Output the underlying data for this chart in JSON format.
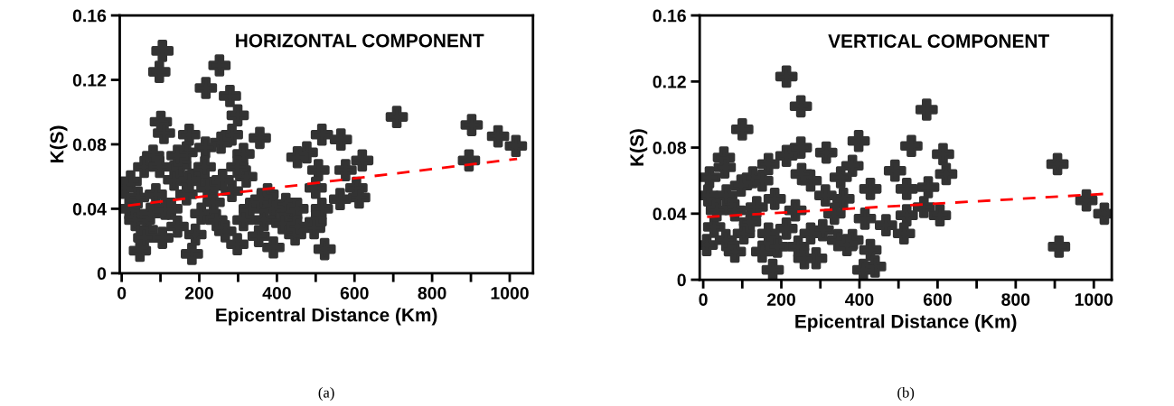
{
  "chart_data": [
    {
      "type": "scatter",
      "title": "HORIZONTAL COMPONENT",
      "xlabel": "Epicentral Distance (Km)",
      "ylabel": "K(S)",
      "annotations": [
        "(a)"
      ],
      "marker": "cross",
      "grid": false,
      "xlim": [
        -5,
        1060
      ],
      "ylim": [
        0,
        0.16
      ],
      "xticks": [
        0,
        {
          "value": 100,
          "label": null
        },
        200,
        {
          "value": 300,
          "label": null
        },
        400,
        {
          "value": 500,
          "label": null
        },
        600,
        {
          "value": 700,
          "label": null
        },
        800,
        {
          "value": 900,
          "label": null
        },
        1000
      ],
      "yticks": [
        0,
        0.04,
        0.08,
        0.12,
        0.16
      ],
      "series": [
        {
          "color": "#333333",
          "x": [
            105,
            97,
            252,
            217,
            279,
            299,
            101,
            109,
            709,
            902,
            970,
            1016,
            895,
            356,
            516,
            565,
            477,
            453,
            620,
            577,
            507,
            605,
            612,
            563,
            500,
            516,
            500,
            496,
            523,
            447,
            391,
            353,
            437,
            376,
            321,
            314,
            284,
            256,
            216,
            174,
            81,
            58,
            23,
            7,
            47,
            181,
            19,
            35,
            65,
            105,
            144,
            128,
            167,
            151,
            167,
            135,
            198,
            205,
            244,
            267,
            298,
            237,
            284,
            221,
            88,
            74,
            190,
            260,
            330,
            360,
            391,
            423,
            453,
            367,
            414,
            453,
            112,
            42,
            174,
            144,
            98,
            214,
            298,
            314,
            58
          ],
          "values": [
            0.138,
            0.125,
            0.129,
            0.115,
            0.11,
            0.098,
            0.094,
            0.087,
            0.097,
            0.092,
            0.085,
            0.079,
            0.07,
            0.084,
            0.086,
            0.083,
            0.075,
            0.072,
            0.07,
            0.064,
            0.064,
            0.053,
            0.047,
            0.046,
            0.053,
            0.04,
            0.032,
            0.028,
            0.015,
            0.024,
            0.016,
            0.023,
            0.04,
            0.049,
            0.06,
            0.074,
            0.086,
            0.081,
            0.078,
            0.086,
            0.073,
            0.066,
            0.057,
            0.053,
            0.014,
            0.012,
            0.04,
            0.033,
            0.027,
            0.022,
            0.029,
            0.04,
            0.049,
            0.067,
            0.075,
            0.058,
            0.062,
            0.037,
            0.033,
            0.026,
            0.018,
            0.044,
            0.051,
            0.053,
            0.049,
            0.037,
            0.024,
            0.058,
            0.04,
            0.046,
            0.04,
            0.043,
            0.04,
            0.033,
            0.031,
            0.029,
            0.04,
            0.047,
            0.057,
            0.073,
            0.066,
            0.066,
            0.066,
            0.033,
            0.022
          ]
        },
        {
          "type": "line",
          "color": "#ff0000",
          "line_style": "dashed",
          "marker": "none",
          "x": [
            16,
            1019
          ],
          "values": [
            0.042,
            0.071
          ]
        }
      ]
    },
    {
      "type": "scatter",
      "title": "VERTICAL COMPONENT",
      "xlabel": "Epicentral Distance (Km)",
      "ylabel": "K(S)",
      "annotations": [
        "(b)"
      ],
      "marker": "cross",
      "grid": false,
      "xlim": [
        -9,
        1046
      ],
      "ylim": [
        0,
        0.16
      ],
      "xticks": [
        0,
        {
          "value": 100,
          "label": null
        },
        200,
        {
          "value": 300,
          "label": null
        },
        400,
        {
          "value": 500,
          "label": null
        },
        600,
        {
          "value": 700,
          "label": null
        },
        800,
        {
          "value": 900,
          "label": null
        },
        1000
      ],
      "yticks": [
        0,
        0.04,
        0.08,
        0.12,
        0.16
      ],
      "series": [
        {
          "color": "#333333",
          "x": [
            213,
            250,
            572,
            100,
            398,
            533,
            250,
            315,
            614,
            53,
            907,
            622,
            911,
            981,
            1027,
            606,
            565,
            576,
            521,
            491,
            521,
            514,
            468,
            428,
            440,
            410,
            178,
            414,
            382,
            352,
            428,
            359,
            336,
            382,
            345,
            289,
            313,
            275,
            252,
            213,
            167,
            127,
            55,
            16,
            12,
            9,
            28,
            59,
            81,
            104,
            81,
            120,
            151,
            183,
            151,
            213,
            243,
            275,
            236,
            190,
            306,
            137,
            97,
            35,
            58,
            167,
            259,
            368
          ],
          "values": [
            0.123,
            0.105,
            0.103,
            0.091,
            0.084,
            0.081,
            0.08,
            0.077,
            0.076,
            0.074,
            0.07,
            0.064,
            0.02,
            0.048,
            0.04,
            0.039,
            0.044,
            0.056,
            0.055,
            0.066,
            0.039,
            0.028,
            0.033,
            0.018,
            0.008,
            0.006,
            0.006,
            0.037,
            0.069,
            0.062,
            0.055,
            0.049,
            0.04,
            0.024,
            0.024,
            0.013,
            0.051,
            0.06,
            0.064,
            0.075,
            0.07,
            0.062,
            0.068,
            0.062,
            0.051,
            0.021,
            0.032,
            0.051,
            0.017,
            0.028,
            0.042,
            0.035,
            0.017,
            0.049,
            0.06,
            0.031,
            0.02,
            0.028,
            0.042,
            0.02,
            0.03,
            0.044,
            0.057,
            0.042,
            0.024,
            0.028,
            0.013,
            0.021
          ]
        },
        {
          "type": "line",
          "color": "#ff0000",
          "line_style": "dashed",
          "marker": "none",
          "x": [
            10,
            1030
          ],
          "values": [
            0.038,
            0.052
          ]
        }
      ]
    }
  ]
}
